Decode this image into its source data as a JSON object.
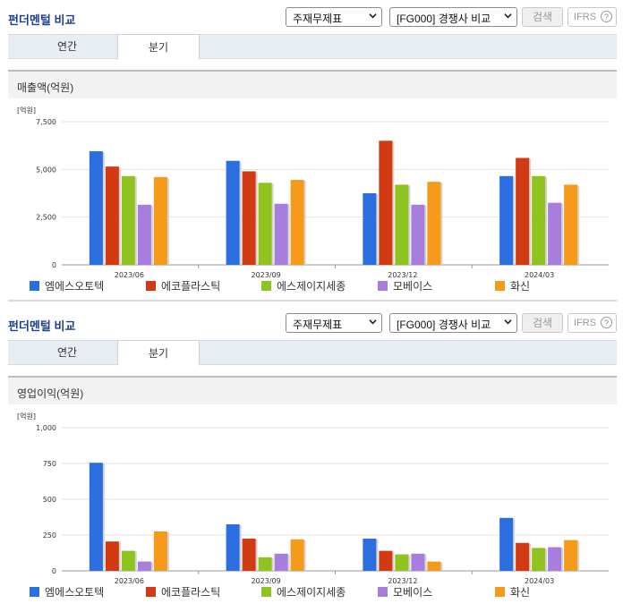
{
  "panels": [
    {
      "title": "펀더멘털 비교",
      "select1": "주재무제표",
      "select2": "[FG000] 경쟁사 비교",
      "search_label": "검색",
      "ifrs_label": "IFRS",
      "ifrs_help": "?",
      "tabs": [
        "연간",
        "분기"
      ],
      "active_tab": 1,
      "section_title": "매출액(억원)",
      "chart_data": {
        "type": "bar",
        "unit_label": "[억원]",
        "categories": [
          "2023/06",
          "2023/09",
          "2023/12",
          "2024/03"
        ],
        "ylim": [
          0,
          7500
        ],
        "yticks": [
          "0",
          "2,500",
          "5,000",
          "7,500"
        ],
        "ytick_values": [
          0,
          2500,
          5000,
          7500
        ],
        "grid": true,
        "legend": "bottom",
        "series": [
          {
            "name": "엠에스오토텍",
            "color": "#2a6ee0",
            "values": [
              5950,
              5450,
              3750,
              4650
            ]
          },
          {
            "name": "에코플라스틱",
            "color": "#d23a13",
            "values": [
              5150,
              4900,
              6500,
              5600
            ]
          },
          {
            "name": "에스제이지세종",
            "color": "#8fc31f",
            "values": [
              4650,
              4300,
              4200,
              4650
            ]
          },
          {
            "name": "모베이스",
            "color": "#a77ede",
            "values": [
              3150,
              3200,
              3150,
              3250
            ]
          },
          {
            "name": "화신",
            "color": "#f59a1b",
            "values": [
              4600,
              4450,
              4350,
              4200
            ]
          }
        ]
      }
    },
    {
      "title": "펀더멘털 비교",
      "select1": "주재무제표",
      "select2": "[FG000] 경쟁사 비교",
      "search_label": "검색",
      "ifrs_label": "IFRS",
      "ifrs_help": "?",
      "tabs": [
        "연간",
        "분기"
      ],
      "active_tab": 1,
      "section_title": "영업이익(억원)",
      "chart_data": {
        "type": "bar",
        "unit_label": "[억원]",
        "categories": [
          "2023/06",
          "2023/09",
          "2023/12",
          "2024/03"
        ],
        "ylim": [
          0,
          1000
        ],
        "yticks": [
          "0",
          "250",
          "500",
          "750",
          "1,000"
        ],
        "ytick_values": [
          0,
          250,
          500,
          750,
          1000
        ],
        "grid": true,
        "legend": "bottom",
        "series": [
          {
            "name": "엠에스오토텍",
            "color": "#2a6ee0",
            "values": [
              755,
              325,
              225,
              370
            ]
          },
          {
            "name": "에코플라스틱",
            "color": "#d23a13",
            "values": [
              205,
              225,
              140,
              195
            ]
          },
          {
            "name": "에스제이지세종",
            "color": "#8fc31f",
            "values": [
              140,
              95,
              115,
              160
            ]
          },
          {
            "name": "모베이스",
            "color": "#a77ede",
            "values": [
              65,
              120,
              120,
              165
            ]
          },
          {
            "name": "화신",
            "color": "#f59a1b",
            "values": [
              275,
              220,
              65,
              215
            ]
          }
        ]
      }
    }
  ]
}
